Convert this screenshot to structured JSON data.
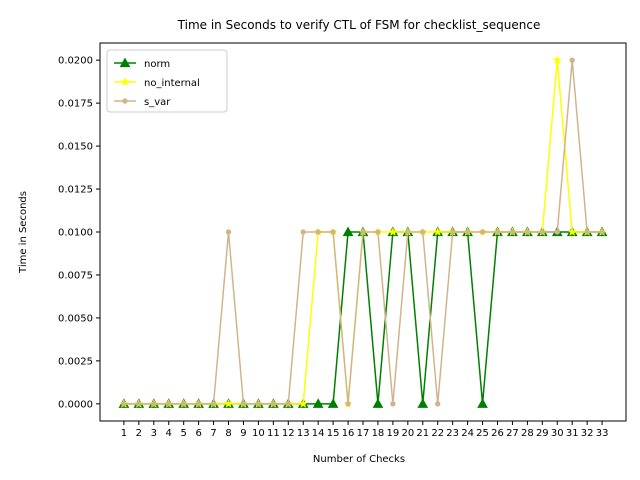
{
  "chart_data": {
    "type": "line",
    "title": "Time in Seconds to verify CTL of FSM for checklist_sequence",
    "xlabel": "Number of Checks",
    "ylabel": "Time in Seconds",
    "x": [
      1,
      2,
      3,
      4,
      5,
      6,
      7,
      8,
      9,
      10,
      11,
      12,
      13,
      14,
      15,
      16,
      17,
      18,
      19,
      20,
      21,
      22,
      23,
      24,
      25,
      26,
      27,
      28,
      29,
      30,
      31,
      32,
      33
    ],
    "ylim": [
      -0.001,
      0.021
    ],
    "yticks": [
      "0.0000",
      "0.0025",
      "0.0050",
      "0.0075",
      "0.0100",
      "0.0125",
      "0.0150",
      "0.0175",
      "0.0200"
    ],
    "grid": false,
    "legend_position": "upper-left",
    "series": [
      {
        "name": "norm",
        "color": "#008000",
        "marker": "triangle",
        "values": [
          0,
          0,
          0,
          0,
          0,
          0,
          0,
          0,
          0,
          0,
          0,
          0,
          0,
          0,
          0,
          0.01,
          0.01,
          0,
          0.01,
          0.01,
          0,
          0.01,
          0.01,
          0.01,
          0,
          0.01,
          0.01,
          0.01,
          0.01,
          0.01,
          0.01,
          0.01,
          0.01
        ]
      },
      {
        "name": "no_internal",
        "color": "#ffff00",
        "marker": "star",
        "values": [
          0,
          0,
          0,
          0,
          0,
          0,
          0,
          0,
          0,
          0,
          0,
          0,
          0,
          0.01,
          0.01,
          0,
          0.01,
          0.01,
          0.01,
          0.01,
          0.01,
          0.01,
          0.01,
          0.01,
          0.01,
          0.01,
          0.01,
          0.01,
          0.01,
          0.02,
          0.01,
          0.01,
          0.01
        ]
      },
      {
        "name": "s_var",
        "color": "#d2b48c",
        "marker": "circle",
        "values": [
          0,
          0,
          0,
          0,
          0,
          0,
          0,
          0.01,
          0,
          0,
          0,
          0,
          0.01,
          0.01,
          0.01,
          0,
          0.01,
          0.01,
          0,
          0.01,
          0.01,
          0,
          0.01,
          0.01,
          0.01,
          0.01,
          0.01,
          0.01,
          0.01,
          0.01,
          0.02,
          0.01,
          0.01
        ]
      }
    ]
  }
}
